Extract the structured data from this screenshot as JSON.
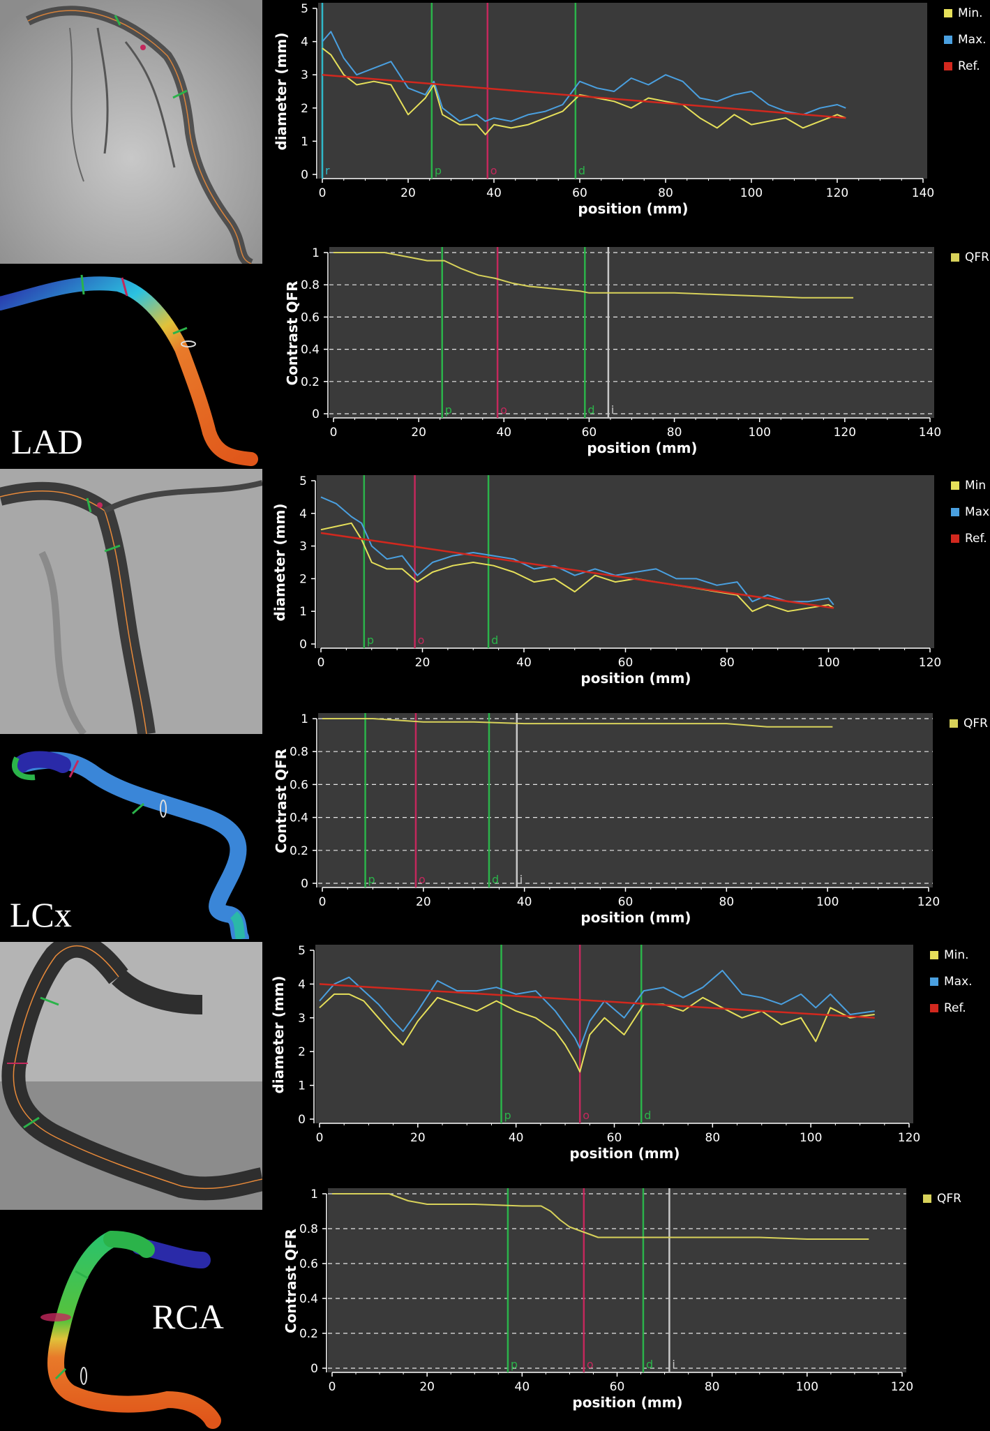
{
  "vessels": [
    {
      "label": "LAD",
      "diameter": {
        "xlabel": "position (mm)",
        "ylabel": "diameter (mm)",
        "legend": [
          "Min.",
          "Max.",
          "Ref."
        ],
        "xticks": [
          "0",
          "20",
          "40",
          "60",
          "80",
          "100",
          "120",
          "140"
        ],
        "yticks": [
          "0",
          "1",
          "2",
          "3",
          "4",
          "5"
        ],
        "markers": [
          {
            "label": "r",
            "x": 0,
            "color": "#2fb9c9"
          },
          {
            "label": "p",
            "x": 25.5,
            "color": "#2bb34a"
          },
          {
            "label": "o",
            "x": 38.5,
            "color": "#c3285c"
          },
          {
            "label": "d",
            "x": 59,
            "color": "#2bb34a"
          }
        ]
      },
      "qfr": {
        "xlabel": "position (mm)",
        "ylabel": "Contrast QFR",
        "legend": [
          "QFR"
        ],
        "xticks": [
          "0",
          "20",
          "40",
          "60",
          "80",
          "100",
          "120",
          "140"
        ],
        "yticks": [
          "0",
          "0.2",
          "0.4",
          "0.6",
          "0.8",
          "1"
        ],
        "markers": [
          {
            "label": "p",
            "x": 25.5,
            "color": "#2bb34a"
          },
          {
            "label": "o",
            "x": 38.5,
            "color": "#c3285c"
          },
          {
            "label": "d",
            "x": 59,
            "color": "#2bb34a"
          },
          {
            "label": "i",
            "x": 64.5,
            "color": "#c8c8c8"
          }
        ]
      }
    },
    {
      "label": "LCx",
      "diameter": {
        "xlabel": "position (mm)",
        "ylabel": "diameter (mm)",
        "legend": [
          "Min",
          "Max",
          "Ref."
        ],
        "xticks": [
          "0",
          "20",
          "40",
          "60",
          "80",
          "100",
          "120"
        ],
        "yticks": [
          "0",
          "1",
          "2",
          "3",
          "4",
          "5"
        ],
        "markers": [
          {
            "label": "p",
            "x": 8.5,
            "color": "#2bb34a"
          },
          {
            "label": "o",
            "x": 18.5,
            "color": "#c3285c"
          },
          {
            "label": "d",
            "x": 33,
            "color": "#2bb34a"
          }
        ]
      },
      "qfr": {
        "xlabel": "position (mm)",
        "ylabel": "Contrast QFR",
        "legend": [
          "QFR"
        ],
        "xticks": [
          "0",
          "20",
          "40",
          "60",
          "80",
          "100",
          "120"
        ],
        "yticks": [
          "0",
          "0.2",
          "0.4",
          "0.6",
          "0.8",
          "1"
        ],
        "markers": [
          {
            "label": "p",
            "x": 8.5,
            "color": "#2bb34a"
          },
          {
            "label": "o",
            "x": 18.5,
            "color": "#c3285c"
          },
          {
            "label": "d",
            "x": 33,
            "color": "#2bb34a"
          },
          {
            "label": "i",
            "x": 38.5,
            "color": "#c8c8c8"
          }
        ]
      }
    },
    {
      "label": "RCA",
      "diameter": {
        "xlabel": "position (mm)",
        "ylabel": "diameter (mm)",
        "legend": [
          "Min.",
          "Max.",
          "Ref."
        ],
        "xticks": [
          "0",
          "20",
          "40",
          "60",
          "80",
          "100",
          "120"
        ],
        "yticks": [
          "0",
          "1",
          "2",
          "3",
          "4",
          "5"
        ],
        "markers": [
          {
            "label": "p",
            "x": 37,
            "color": "#2bb34a"
          },
          {
            "label": "o",
            "x": 53,
            "color": "#c3285c"
          },
          {
            "label": "d",
            "x": 65.5,
            "color": "#2bb34a"
          }
        ]
      },
      "qfr": {
        "xlabel": "position (mm)",
        "ylabel": "Contrast QFR",
        "legend": [
          "QFR"
        ],
        "xticks": [
          "0",
          "20",
          "40",
          "60",
          "80",
          "100",
          "120"
        ],
        "yticks": [
          "0",
          "0.2",
          "0.4",
          "0.6",
          "0.8",
          "1"
        ],
        "markers": [
          {
            "label": "p",
            "x": 37,
            "color": "#2bb34a"
          },
          {
            "label": "o",
            "x": 53,
            "color": "#c3285c"
          },
          {
            "label": "d",
            "x": 65.5,
            "color": "#2bb34a"
          },
          {
            "label": "i",
            "x": 71,
            "color": "#c8c8c8"
          }
        ]
      }
    }
  ],
  "colors": {
    "min": "#e6e05a",
    "max": "#4aa0e0",
    "ref": "#d2281e",
    "qfr": "#d8d25a",
    "plot_bg": "#3a3a3a",
    "axis_text": "#ffffff"
  },
  "chart_data": [
    {
      "type": "line",
      "vessel": "LAD",
      "xlabel": "position (mm)",
      "ylabel": "diameter (mm)",
      "xlim": [
        0,
        140
      ],
      "ylim": [
        0,
        5
      ],
      "legend_position": "right",
      "series": [
        {
          "name": "Min.",
          "x": [
            0,
            2,
            5,
            8,
            12,
            16,
            20,
            24,
            26,
            28,
            32,
            36,
            38,
            40,
            44,
            48,
            52,
            56,
            60,
            64,
            68,
            72,
            76,
            80,
            84,
            88,
            92,
            96,
            100,
            104,
            108,
            112,
            116,
            120,
            122
          ],
          "y": [
            3.8,
            3.6,
            3.0,
            2.7,
            2.8,
            2.7,
            1.8,
            2.3,
            2.7,
            1.8,
            1.5,
            1.5,
            1.2,
            1.5,
            1.4,
            1.5,
            1.7,
            1.9,
            2.4,
            2.3,
            2.2,
            2.0,
            2.3,
            2.2,
            2.1,
            1.7,
            1.4,
            1.8,
            1.5,
            1.6,
            1.7,
            1.4,
            1.6,
            1.8,
            1.7
          ]
        },
        {
          "name": "Max.",
          "x": [
            0,
            2,
            5,
            8,
            12,
            16,
            20,
            24,
            26,
            28,
            32,
            36,
            38,
            40,
            44,
            48,
            52,
            56,
            60,
            64,
            68,
            72,
            76,
            80,
            84,
            88,
            92,
            96,
            100,
            104,
            108,
            112,
            116,
            120,
            122
          ],
          "y": [
            4.0,
            4.3,
            3.5,
            3.0,
            3.2,
            3.4,
            2.6,
            2.4,
            2.8,
            2.0,
            1.6,
            1.8,
            1.6,
            1.7,
            1.6,
            1.8,
            1.9,
            2.1,
            2.8,
            2.6,
            2.5,
            2.9,
            2.7,
            3.0,
            2.8,
            2.3,
            2.2,
            2.4,
            2.5,
            2.1,
            1.9,
            1.8,
            2.0,
            2.1,
            2.0
          ]
        },
        {
          "name": "Ref.",
          "x": [
            0,
            122
          ],
          "y": [
            3.0,
            1.7
          ]
        }
      ],
      "markers": [
        {
          "label": "r",
          "x": 0
        },
        {
          "label": "p",
          "x": 25.5
        },
        {
          "label": "o",
          "x": 38.5
        },
        {
          "label": "d",
          "x": 59
        }
      ]
    },
    {
      "type": "line",
      "vessel": "LAD",
      "xlabel": "position (mm)",
      "ylabel": "Contrast QFR",
      "xlim": [
        0,
        140
      ],
      "ylim": [
        0,
        1
      ],
      "grid": "horizontal dashed",
      "legend_position": "right",
      "series": [
        {
          "name": "QFR",
          "x": [
            0,
            12,
            18,
            22,
            26,
            30,
            34,
            38,
            42,
            46,
            50,
            54,
            58,
            60,
            70,
            80,
            90,
            100,
            110,
            122
          ],
          "y": [
            1.0,
            1.0,
            0.97,
            0.95,
            0.95,
            0.9,
            0.86,
            0.84,
            0.81,
            0.79,
            0.78,
            0.77,
            0.76,
            0.75,
            0.75,
            0.75,
            0.74,
            0.73,
            0.72,
            0.72
          ]
        }
      ],
      "markers": [
        {
          "label": "p",
          "x": 25.5
        },
        {
          "label": "o",
          "x": 38.5
        },
        {
          "label": "d",
          "x": 59
        },
        {
          "label": "i",
          "x": 64.5
        }
      ]
    },
    {
      "type": "line",
      "vessel": "LCx",
      "xlabel": "position (mm)",
      "ylabel": "diameter (mm)",
      "xlim": [
        0,
        120
      ],
      "ylim": [
        0,
        5
      ],
      "legend_position": "right",
      "series": [
        {
          "name": "Min",
          "x": [
            0,
            3,
            6,
            8,
            10,
            13,
            16,
            19,
            22,
            26,
            30,
            34,
            38,
            42,
            46,
            50,
            54,
            58,
            62,
            66,
            70,
            74,
            78,
            82,
            85,
            88,
            92,
            96,
            100,
            101
          ],
          "y": [
            3.5,
            3.6,
            3.7,
            3.2,
            2.5,
            2.3,
            2.3,
            1.9,
            2.2,
            2.4,
            2.5,
            2.4,
            2.2,
            1.9,
            2.0,
            1.6,
            2.1,
            1.9,
            2.0,
            1.9,
            1.8,
            1.7,
            1.6,
            1.5,
            1.0,
            1.2,
            1.0,
            1.1,
            1.2,
            1.1
          ]
        },
        {
          "name": "Max",
          "x": [
            0,
            3,
            6,
            8,
            10,
            13,
            16,
            19,
            22,
            26,
            30,
            34,
            38,
            42,
            46,
            50,
            54,
            58,
            62,
            66,
            70,
            74,
            78,
            82,
            85,
            88,
            92,
            96,
            100,
            101
          ],
          "y": [
            4.5,
            4.3,
            3.9,
            3.7,
            3.0,
            2.6,
            2.7,
            2.1,
            2.5,
            2.7,
            2.8,
            2.7,
            2.6,
            2.3,
            2.4,
            2.1,
            2.3,
            2.1,
            2.2,
            2.3,
            2.0,
            2.0,
            1.8,
            1.9,
            1.3,
            1.5,
            1.3,
            1.3,
            1.4,
            1.2
          ]
        },
        {
          "name": "Ref.",
          "x": [
            0,
            101
          ],
          "y": [
            3.4,
            1.1
          ]
        }
      ],
      "markers": [
        {
          "label": "p",
          "x": 8.5
        },
        {
          "label": "o",
          "x": 18.5
        },
        {
          "label": "d",
          "x": 33
        }
      ]
    },
    {
      "type": "line",
      "vessel": "LCx",
      "xlabel": "position (mm)",
      "ylabel": "Contrast QFR",
      "xlim": [
        0,
        120
      ],
      "ylim": [
        0,
        1
      ],
      "grid": "horizontal dashed",
      "legend_position": "right",
      "series": [
        {
          "name": "QFR",
          "x": [
            0,
            10,
            15,
            20,
            30,
            40,
            50,
            60,
            70,
            80,
            84,
            88,
            94,
            101
          ],
          "y": [
            1.0,
            1.0,
            0.99,
            0.98,
            0.98,
            0.97,
            0.97,
            0.97,
            0.97,
            0.97,
            0.96,
            0.95,
            0.95,
            0.95
          ]
        }
      ],
      "markers": [
        {
          "label": "p",
          "x": 8.5
        },
        {
          "label": "o",
          "x": 18.5
        },
        {
          "label": "d",
          "x": 33
        },
        {
          "label": "i",
          "x": 38.5
        }
      ]
    },
    {
      "type": "line",
      "vessel": "RCA",
      "xlabel": "position (mm)",
      "ylabel": "diameter (mm)",
      "xlim": [
        0,
        120
      ],
      "ylim": [
        0,
        5
      ],
      "legend_position": "right",
      "series": [
        {
          "name": "Min.",
          "x": [
            0,
            3,
            6,
            9,
            12,
            15,
            17,
            20,
            24,
            28,
            32,
            36,
            40,
            44,
            48,
            50,
            52,
            53,
            55,
            58,
            62,
            66,
            70,
            74,
            78,
            82,
            86,
            90,
            94,
            98,
            101,
            104,
            108,
            113
          ],
          "y": [
            3.3,
            3.7,
            3.7,
            3.5,
            3.0,
            2.5,
            2.2,
            2.9,
            3.6,
            3.4,
            3.2,
            3.5,
            3.2,
            3.0,
            2.6,
            2.2,
            1.7,
            1.4,
            2.5,
            3.0,
            2.5,
            3.4,
            3.4,
            3.2,
            3.6,
            3.3,
            3.0,
            3.2,
            2.8,
            3.0,
            2.3,
            3.3,
            3.0,
            3.1
          ]
        },
        {
          "name": "Max.",
          "x": [
            0,
            3,
            6,
            9,
            12,
            15,
            17,
            20,
            24,
            28,
            32,
            36,
            40,
            44,
            48,
            50,
            52,
            53,
            55,
            58,
            62,
            66,
            70,
            74,
            78,
            82,
            86,
            90,
            94,
            98,
            101,
            104,
            108,
            113
          ],
          "y": [
            3.5,
            4.0,
            4.2,
            3.8,
            3.4,
            2.9,
            2.6,
            3.2,
            4.1,
            3.8,
            3.8,
            3.9,
            3.7,
            3.8,
            3.2,
            2.8,
            2.4,
            2.1,
            2.9,
            3.5,
            3.0,
            3.8,
            3.9,
            3.6,
            3.9,
            4.4,
            3.7,
            3.6,
            3.4,
            3.7,
            3.3,
            3.7,
            3.1,
            3.2
          ]
        },
        {
          "name": "Ref.",
          "x": [
            0,
            113
          ],
          "y": [
            4.0,
            3.0
          ]
        }
      ],
      "markers": [
        {
          "label": "p",
          "x": 37
        },
        {
          "label": "o",
          "x": 53
        },
        {
          "label": "d",
          "x": 65.5
        }
      ]
    },
    {
      "type": "line",
      "vessel": "RCA",
      "xlabel": "position (mm)",
      "ylabel": "Contrast QFR",
      "xlim": [
        0,
        120
      ],
      "ylim": [
        0,
        1
      ],
      "grid": "horizontal dashed",
      "legend_position": "right",
      "series": [
        {
          "name": "QFR",
          "x": [
            0,
            12,
            16,
            20,
            30,
            40,
            44,
            46,
            48,
            50,
            52,
            54,
            56,
            60,
            70,
            80,
            90,
            100,
            113
          ],
          "y": [
            1.0,
            1.0,
            0.96,
            0.94,
            0.94,
            0.93,
            0.93,
            0.9,
            0.85,
            0.81,
            0.79,
            0.77,
            0.75,
            0.75,
            0.75,
            0.75,
            0.75,
            0.74,
            0.74
          ]
        }
      ],
      "markers": [
        {
          "label": "p",
          "x": 37
        },
        {
          "label": "o",
          "x": 53
        },
        {
          "label": "d",
          "x": 65.5
        },
        {
          "label": "i",
          "x": 71
        }
      ]
    }
  ]
}
